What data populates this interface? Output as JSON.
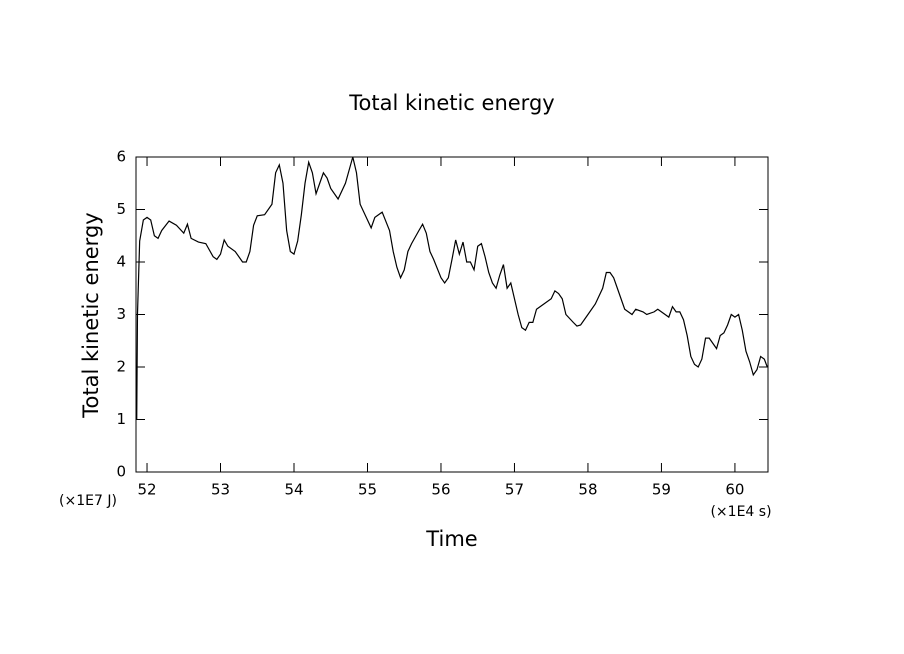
{
  "chart_data": {
    "type": "line",
    "title": "Total kinetic energy",
    "y_label": "Total kinetic energy",
    "x_label": "Time",
    "y_scale_label": "(×1E7 J)",
    "x_scale_label": "(×1E4 s)",
    "xlim": [
      51.85,
      60.45
    ],
    "ylim": [
      0,
      6
    ],
    "xticks": [
      52,
      53,
      54,
      55,
      56,
      57,
      58,
      59,
      60
    ],
    "yticks": [
      0,
      1,
      2,
      3,
      4,
      5,
      6
    ],
    "color": "#000000",
    "x": [
      51.86,
      51.87,
      51.9,
      51.95,
      52.0,
      52.05,
      52.1,
      52.15,
      52.2,
      52.3,
      52.4,
      52.5,
      52.55,
      52.6,
      52.7,
      52.8,
      52.9,
      52.95,
      53.0,
      53.05,
      53.1,
      53.2,
      53.3,
      53.35,
      53.4,
      53.45,
      53.5,
      53.6,
      53.7,
      53.75,
      53.8,
      53.85,
      53.9,
      53.95,
      54.0,
      54.05,
      54.1,
      54.15,
      54.2,
      54.25,
      54.3,
      54.35,
      54.4,
      54.45,
      54.5,
      54.6,
      54.7,
      54.8,
      54.85,
      54.9,
      55.0,
      55.05,
      55.1,
      55.2,
      55.3,
      55.35,
      55.4,
      55.45,
      55.5,
      55.55,
      55.6,
      55.7,
      55.75,
      55.8,
      55.85,
      55.9,
      56.0,
      56.05,
      56.1,
      56.15,
      56.2,
      56.25,
      56.3,
      56.35,
      56.4,
      56.45,
      56.5,
      56.55,
      56.6,
      56.65,
      56.7,
      56.75,
      56.8,
      56.85,
      56.9,
      56.95,
      57.0,
      57.05,
      57.1,
      57.15,
      57.2,
      57.25,
      57.3,
      57.35,
      57.4,
      57.5,
      57.55,
      57.6,
      57.65,
      57.7,
      57.8,
      57.85,
      57.9,
      58.0,
      58.1,
      58.2,
      58.25,
      58.3,
      58.35,
      58.4,
      58.5,
      58.6,
      58.65,
      58.75,
      58.8,
      58.9,
      58.95,
      59.05,
      59.1,
      59.15,
      59.2,
      59.25,
      59.3,
      59.35,
      59.4,
      59.45,
      59.5,
      59.55,
      59.6,
      59.65,
      59.7,
      59.75,
      59.8,
      59.85,
      59.9,
      59.95,
      60.0,
      60.05,
      60.1,
      60.15,
      60.2,
      60.25,
      60.3,
      60.35,
      60.4,
      60.44
    ],
    "values": [
      1.0,
      3.0,
      4.4,
      4.8,
      4.85,
      4.8,
      4.5,
      4.45,
      4.6,
      4.78,
      4.7,
      4.55,
      4.72,
      4.45,
      4.38,
      4.35,
      4.1,
      4.05,
      4.15,
      4.42,
      4.3,
      4.2,
      4.0,
      4.0,
      4.2,
      4.7,
      4.88,
      4.9,
      5.1,
      5.7,
      5.85,
      5.5,
      4.6,
      4.2,
      4.15,
      4.4,
      4.9,
      5.5,
      5.9,
      5.7,
      5.3,
      5.5,
      5.7,
      5.6,
      5.4,
      5.2,
      5.5,
      6.0,
      5.7,
      5.1,
      4.8,
      4.65,
      4.85,
      4.95,
      4.6,
      4.2,
      3.9,
      3.7,
      3.85,
      4.2,
      4.35,
      4.6,
      4.72,
      4.55,
      4.2,
      4.05,
      3.7,
      3.6,
      3.7,
      4.05,
      4.42,
      4.15,
      4.38,
      4.0,
      4.0,
      3.85,
      4.3,
      4.35,
      4.1,
      3.8,
      3.6,
      3.5,
      3.75,
      3.95,
      3.5,
      3.6,
      3.3,
      3.0,
      2.75,
      2.7,
      2.85,
      2.85,
      3.1,
      3.15,
      3.2,
      3.3,
      3.45,
      3.4,
      3.3,
      3.0,
      2.85,
      2.78,
      2.8,
      3.0,
      3.2,
      3.5,
      3.8,
      3.8,
      3.7,
      3.5,
      3.1,
      3.0,
      3.1,
      3.05,
      3.0,
      3.05,
      3.1,
      3.0,
      2.95,
      3.15,
      3.05,
      3.05,
      2.9,
      2.6,
      2.2,
      2.05,
      2.0,
      2.15,
      2.55,
      2.55,
      2.45,
      2.35,
      2.6,
      2.65,
      2.8,
      3.0,
      2.95,
      3.0,
      2.7,
      2.3,
      2.1,
      1.85,
      1.95,
      2.2,
      2.15,
      2.0
    ]
  }
}
